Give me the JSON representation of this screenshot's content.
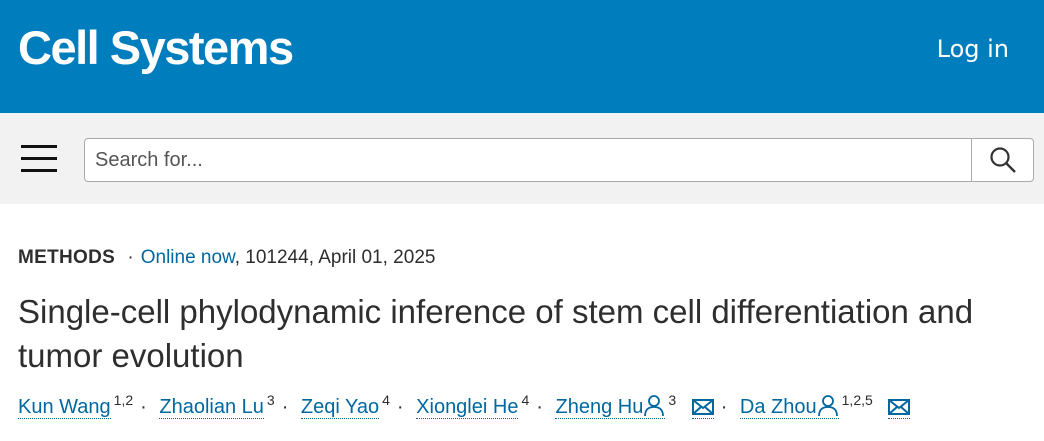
{
  "header": {
    "logo": "Cell Systems",
    "login": "Log in"
  },
  "search": {
    "placeholder": "Search for..."
  },
  "article": {
    "type": "METHODS",
    "separator": "·",
    "online": "Online now",
    "details": ", 101244, April 01, 2025",
    "title": "Single-cell phylodynamic inference of stem cell differentiation and tumor evolution",
    "authors": [
      {
        "name": "Kun Wang",
        "aff": "1,2"
      },
      {
        "name": "Zhaolian Lu",
        "aff": "3"
      },
      {
        "name": "Zeqi Yao",
        "aff": "4"
      },
      {
        "name": "Xionglei He",
        "aff": "4"
      },
      {
        "name": "Zheng Hu",
        "aff": "3",
        "corresponding": true
      },
      {
        "name": "Da Zhou",
        "aff": "1,2,5",
        "corresponding": true
      }
    ]
  },
  "colors": {
    "brand": "#007dbc",
    "link": "#00689f"
  }
}
